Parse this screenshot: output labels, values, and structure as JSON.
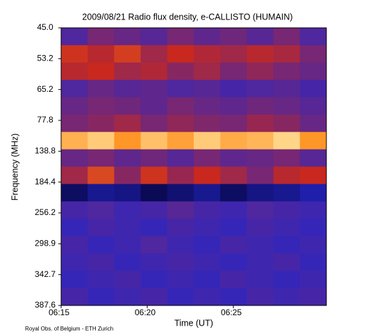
{
  "chart_data": {
    "type": "heatmap",
    "title": "2009/08/21  Radio flux density, e-CALLISTO (HUMAIN)",
    "x_label": "Time (UT)",
    "y_label": "Frequency (MHz)",
    "footer": "Royal Obs. of Belgium - ETH Zurich",
    "xlim": [
      "06:15:00",
      "06:30:24"
    ],
    "xticks": [
      {
        "value": "06:15:00",
        "label": "06:15"
      },
      {
        "value": "06:20:00",
        "label": "06:20"
      },
      {
        "value": "06:25:00",
        "label": "06:25"
      }
    ],
    "yticks": [
      {
        "value": 45,
        "label": "45.0"
      },
      53.2,
      65.2,
      77.8,
      138.8,
      184.4,
      256.2,
      298.9,
      342.7,
      387.6
    ],
    "colormap": [
      "#000000",
      "#0a0a55",
      "#2626c8",
      "#c8281e",
      "#ff9628",
      "#ffffc8"
    ],
    "values": [
      [
        0.45,
        0.5,
        0.48,
        0.46,
        0.5,
        0.47,
        0.49,
        0.46,
        0.5,
        0.45
      ],
      [
        0.62,
        0.58,
        0.64,
        0.55,
        0.6,
        0.57,
        0.55,
        0.58,
        0.56,
        0.5
      ],
      [
        0.58,
        0.6,
        0.55,
        0.57,
        0.52,
        0.55,
        0.5,
        0.53,
        0.5,
        0.48
      ],
      [
        0.45,
        0.48,
        0.46,
        0.47,
        0.45,
        0.46,
        0.44,
        0.45,
        0.46,
        0.44
      ],
      [
        0.48,
        0.5,
        0.49,
        0.47,
        0.5,
        0.48,
        0.47,
        0.49,
        0.48,
        0.46
      ],
      [
        0.5,
        0.52,
        0.55,
        0.5,
        0.53,
        0.51,
        0.5,
        0.54,
        0.52,
        0.48
      ],
      [
        0.85,
        0.9,
        0.8,
        0.88,
        0.82,
        0.9,
        0.84,
        0.86,
        0.92,
        0.8
      ],
      [
        0.48,
        0.5,
        0.47,
        0.49,
        0.46,
        0.5,
        0.47,
        0.48,
        0.5,
        0.46
      ],
      [
        0.55,
        0.66,
        0.52,
        0.62,
        0.54,
        0.6,
        0.55,
        0.5,
        0.58,
        0.6
      ],
      [
        0.22,
        0.3,
        0.28,
        0.2,
        0.25,
        0.3,
        0.22,
        0.28,
        0.3,
        0.35
      ],
      [
        0.44,
        0.45,
        0.43,
        0.44,
        0.46,
        0.44,
        0.43,
        0.45,
        0.44,
        0.43
      ],
      [
        0.42,
        0.44,
        0.43,
        0.42,
        0.44,
        0.43,
        0.42,
        0.44,
        0.43,
        0.42
      ],
      [
        0.44,
        0.42,
        0.43,
        0.45,
        0.43,
        0.42,
        0.44,
        0.43,
        0.42,
        0.43
      ],
      [
        0.43,
        0.44,
        0.42,
        0.43,
        0.44,
        0.43,
        0.42,
        0.43,
        0.44,
        0.42
      ],
      [
        0.42,
        0.43,
        0.44,
        0.42,
        0.43,
        0.42,
        0.44,
        0.43,
        0.42,
        0.43
      ],
      [
        0.44,
        0.42,
        0.43,
        0.44,
        0.42,
        0.43,
        0.42,
        0.44,
        0.43,
        0.44
      ]
    ]
  }
}
